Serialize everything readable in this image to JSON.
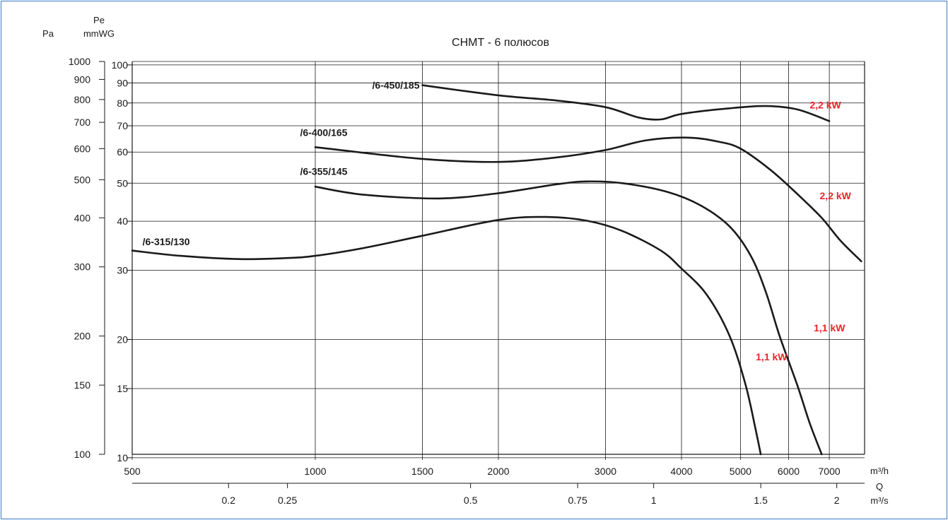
{
  "chart_data": {
    "type": "line",
    "title": "СНМТ  -  6 полюсов",
    "x_scale": "log",
    "y_scale": "log",
    "xlim": [
      500,
      8000
    ],
    "ylim": [
      100,
      1000
    ],
    "grid": true,
    "axis_labels": {
      "y_left_unit": "Pa",
      "y_right_symbol": "Pe",
      "y_right_unit": "mmWG",
      "x_flow_unit": "m³/h",
      "x_symbol": "Q",
      "x_secondary_unit": "m³/s"
    },
    "y_ticks_pa": [
      {
        "v": 1000,
        "t": "1000"
      },
      {
        "v": 900,
        "t": "900"
      },
      {
        "v": 800,
        "t": "800"
      },
      {
        "v": 700,
        "t": "700"
      },
      {
        "v": 600,
        "t": "600"
      },
      {
        "v": 500,
        "t": "500"
      },
      {
        "v": 400,
        "t": "400"
      },
      {
        "v": 300,
        "t": "300"
      },
      {
        "v": 200,
        "t": "200"
      },
      {
        "v": 150,
        "t": "150"
      },
      {
        "v": 100,
        "t": "100"
      }
    ],
    "y_ticks_mmwg": [
      {
        "v": 980,
        "t": "100"
      },
      {
        "v": 882,
        "t": "90"
      },
      {
        "v": 784,
        "t": "80"
      },
      {
        "v": 686,
        "t": "70"
      },
      {
        "v": 588,
        "t": "60"
      },
      {
        "v": 490,
        "t": "50"
      },
      {
        "v": 392,
        "t": "40"
      },
      {
        "v": 294,
        "t": "30"
      },
      {
        "v": 196,
        "t": "20"
      },
      {
        "v": 147,
        "t": "15"
      },
      {
        "v": 98,
        "t": "10"
      }
    ],
    "x_ticks_m3h": [
      {
        "v": 500,
        "t": "500"
      },
      {
        "v": 1000,
        "t": "1000"
      },
      {
        "v": 1500,
        "t": "1500"
      },
      {
        "v": 2000,
        "t": "2000"
      },
      {
        "v": 3000,
        "t": "3000"
      },
      {
        "v": 4000,
        "t": "4000"
      },
      {
        "v": 5000,
        "t": "5000"
      },
      {
        "v": 6000,
        "t": "6000"
      },
      {
        "v": 7000,
        "t": "7000"
      }
    ],
    "x_ticks_m3s": [
      {
        "v": 720,
        "t": "0.2"
      },
      {
        "v": 900,
        "t": "0.25"
      },
      {
        "v": 1800,
        "t": "0.5"
      },
      {
        "v": 2700,
        "t": "0.75"
      },
      {
        "v": 3600,
        "t": "1"
      },
      {
        "v": 5400,
        "t": "1.5"
      },
      {
        "v": 7200,
        "t": "2"
      }
    ],
    "series": [
      {
        "name": "/6-450/185",
        "label_at": [
          1500,
          870
        ],
        "points": [
          [
            1500,
            870
          ],
          [
            2000,
            820
          ],
          [
            2500,
            795
          ],
          [
            3000,
            765
          ],
          [
            3400,
            720
          ],
          [
            3700,
            712
          ],
          [
            4000,
            735
          ],
          [
            4800,
            760
          ],
          [
            5500,
            770
          ],
          [
            6200,
            755
          ],
          [
            7000,
            705
          ]
        ]
      },
      {
        "name": "/6-400/165",
        "label_at": [
          1000,
          660
        ],
        "points": [
          [
            1000,
            605
          ],
          [
            1500,
            565
          ],
          [
            2000,
            555
          ],
          [
            2500,
            570
          ],
          [
            3000,
            595
          ],
          [
            3500,
            630
          ],
          [
            4100,
            640
          ],
          [
            4600,
            625
          ],
          [
            5000,
            600
          ],
          [
            5600,
            530
          ],
          [
            6200,
            460
          ],
          [
            6800,
            400
          ],
          [
            7300,
            350
          ],
          [
            7900,
            310
          ]
        ]
      },
      {
        "name": "/6-355/145",
        "label_at": [
          1000,
          525
        ],
        "points": [
          [
            1000,
            480
          ],
          [
            1200,
            458
          ],
          [
            1600,
            448
          ],
          [
            2000,
            462
          ],
          [
            2500,
            487
          ],
          [
            2800,
            495
          ],
          [
            3200,
            490
          ],
          [
            3800,
            465
          ],
          [
            4300,
            430
          ],
          [
            4800,
            380
          ],
          [
            5200,
            320
          ],
          [
            5500,
            260
          ],
          [
            5800,
            200
          ],
          [
            6200,
            150
          ],
          [
            6500,
            120
          ],
          [
            6800,
            100
          ]
        ]
      },
      {
        "name": "/6-315/130",
        "label_at": [
          520,
          348
        ],
        "points": [
          [
            500,
            330
          ],
          [
            600,
            320
          ],
          [
            750,
            314
          ],
          [
            900,
            316
          ],
          [
            1000,
            320
          ],
          [
            1200,
            335
          ],
          [
            1500,
            360
          ],
          [
            2000,
            395
          ],
          [
            2400,
            402
          ],
          [
            2800,
            393
          ],
          [
            3200,
            370
          ],
          [
            3700,
            330
          ],
          [
            4000,
            297
          ],
          [
            4400,
            255
          ],
          [
            4800,
            200
          ],
          [
            5100,
            150
          ],
          [
            5300,
            115
          ],
          [
            5400,
            100
          ]
        ]
      }
    ],
    "power_labels": [
      {
        "text": "2,2 kW",
        "at": [
          6500,
          775
        ],
        "leader_to": [
          6200,
          775
        ]
      },
      {
        "text": "2,2 kW",
        "at": [
          6750,
          455
        ]
      },
      {
        "text": "1,1 kW",
        "at": [
          6600,
          210
        ]
      },
      {
        "text": "1,1 kW",
        "at": [
          5300,
          177
        ]
      }
    ],
    "colors": {
      "axis": "#1a1a1a",
      "curve": "#1a1a1a",
      "power_label": "#e8262b",
      "frame": "#3a7bc8"
    }
  }
}
